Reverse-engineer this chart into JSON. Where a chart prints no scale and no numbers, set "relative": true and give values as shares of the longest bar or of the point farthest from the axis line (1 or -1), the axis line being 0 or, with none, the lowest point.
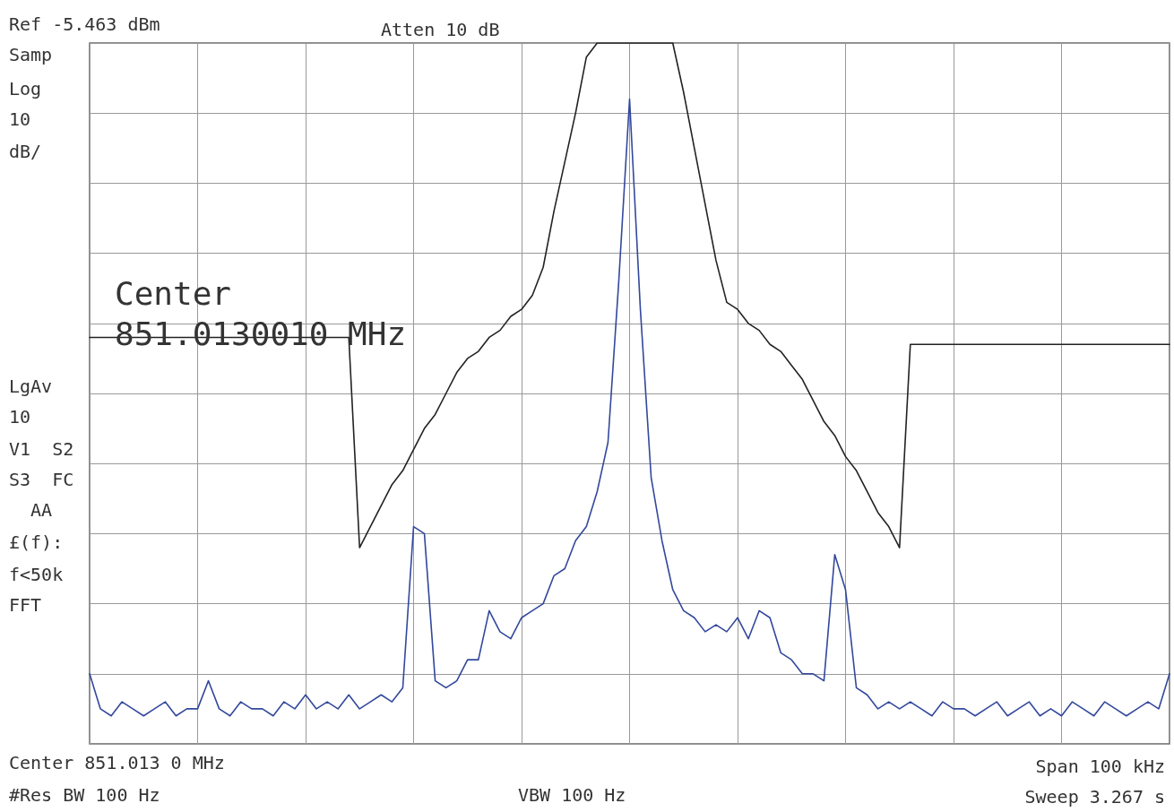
{
  "chart_data": {
    "type": "line",
    "relative": true,
    "grid": true,
    "marker": "none",
    "line_style": "solid",
    "categories": [
      null,
      null,
      null,
      null,
      null,
      null,
      null,
      null,
      null,
      null,
      null,
      null,
      null,
      null,
      null,
      null,
      null,
      null,
      null,
      null,
      null,
      null,
      null,
      null,
      null,
      null,
      null,
      null,
      null,
      null,
      null,
      null,
      null,
      null,
      null,
      null,
      null,
      null,
      null,
      null,
      null,
      null,
      null,
      null,
      null,
      null,
      null,
      null,
      null,
      null,
      null,
      null,
      null,
      null,
      null,
      null,
      null,
      null,
      null,
      null,
      null,
      null,
      null,
      null,
      null,
      null,
      null,
      null,
      null,
      null,
      null,
      null,
      null,
      null,
      null,
      null,
      null,
      null,
      null,
      null,
      null,
      null,
      null,
      null,
      null,
      null,
      null,
      null,
      null,
      null,
      null,
      null,
      null,
      null,
      null,
      null,
      null,
      null,
      null,
      null,
      null
    ],
    "series": [
      {
        "color": "#33489c",
        "values": [
          0.1,
          0.05,
          0.04,
          0.06,
          0.05,
          0.04,
          0.05,
          0.06,
          0.04,
          0.05,
          0.05,
          0.09,
          0.05,
          0.04,
          0.06,
          0.05,
          0.05,
          0.04,
          0.06,
          0.05,
          0.07,
          0.05,
          0.06,
          0.05,
          0.07,
          0.05,
          0.06,
          0.07,
          0.06,
          0.08,
          0.31,
          0.3,
          0.09,
          0.08,
          0.09,
          0.12,
          0.12,
          0.19,
          0.16,
          0.15,
          0.18,
          0.19,
          0.2,
          0.24,
          0.25,
          0.29,
          0.31,
          0.36,
          0.43,
          0.66,
          0.92,
          0.62,
          0.38,
          0.29,
          0.22,
          0.19,
          0.18,
          0.16,
          0.17,
          0.16,
          0.18,
          0.15,
          0.19,
          0.18,
          0.13,
          0.12,
          0.1,
          0.1,
          0.09,
          0.27,
          0.22,
          0.08,
          0.07,
          0.05,
          0.06,
          0.05,
          0.06,
          0.05,
          0.04,
          0.06,
          0.05,
          0.05,
          0.04,
          0.05,
          0.06,
          0.04,
          0.05,
          0.06,
          0.04,
          0.05,
          0.04,
          0.06,
          0.05,
          0.04,
          0.06,
          0.05,
          0.04,
          0.05,
          0.06,
          0.05,
          0.1
        ]
      },
      {
        "color": "#222222",
        "values": [
          0.58,
          0.58,
          0.58,
          0.58,
          0.58,
          0.58,
          0.58,
          0.58,
          0.58,
          0.58,
          0.58,
          0.58,
          0.58,
          0.58,
          0.58,
          0.58,
          0.58,
          0.58,
          0.58,
          0.58,
          0.58,
          0.58,
          0.58,
          0.58,
          0.58,
          0.28,
          0.31,
          0.34,
          0.37,
          0.39,
          0.42,
          0.45,
          0.47,
          0.5,
          0.53,
          0.55,
          0.56,
          0.58,
          0.59,
          0.61,
          0.62,
          0.64,
          0.68,
          0.76,
          0.83,
          0.9,
          0.98,
          1,
          1,
          1,
          1,
          1,
          1,
          1,
          1,
          0.93,
          0.85,
          0.77,
          0.69,
          0.63,
          0.62,
          0.6,
          0.59,
          0.57,
          0.56,
          0.54,
          0.52,
          0.49,
          0.46,
          0.44,
          0.41,
          0.39,
          0.36,
          0.33,
          0.31,
          0.28,
          0.57,
          0.57,
          0.57,
          0.57,
          0.57,
          0.57,
          0.57,
          0.57,
          0.57,
          0.57,
          0.57,
          0.57,
          0.57,
          0.57,
          0.57,
          0.57,
          0.57,
          0.57,
          0.57,
          0.57,
          0.57,
          0.57,
          0.57,
          0.57,
          0.57
        ]
      }
    ],
    "annotations": [
      "Ref -5.463 dBm",
      "Atten 10 dB",
      "Samp",
      "Log",
      "10",
      "dB/",
      "LgAv",
      "10",
      "V1  S2",
      "S3  FC",
      "AA",
      "£(f):",
      "f<50k",
      "FFT",
      "Center\n851.0130010 MHz",
      "Center 851.013 0 MHz",
      "Span 100 kHz",
      "#Res BW 100 Hz",
      "VBW 100 Hz",
      "Sweep 3.267 s"
    ]
  }
}
